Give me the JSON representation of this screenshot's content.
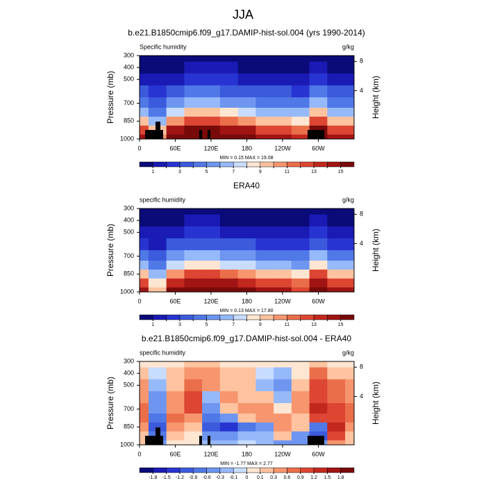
{
  "title": "JJA",
  "chart_data": [
    {
      "type": "contour",
      "title": "b.e21.B1850cmip6.f09_g17.DAMIP-hist-sol.004 (yrs 1990-2014)",
      "left_label": "Specific humidity",
      "right_label": "g/kg",
      "ylabel": "Pressure (mb)",
      "y2label": "Height (km)",
      "stats": "MIN =   0.15  MAX =  19.08",
      "ylim": [
        1000,
        300
      ],
      "yticks": [
        300,
        400,
        500,
        700,
        850,
        1000
      ],
      "y2ticks": [
        8,
        4
      ],
      "xlim": [
        0,
        360
      ],
      "xticks": [
        0,
        {
          "value": 60,
          "label": "60E"
        },
        {
          "value": 120,
          "label": "120E"
        },
        180,
        {
          "value": 240,
          "label": "120W"
        },
        {
          "value": 300,
          "label": "60W"
        }
      ],
      "x": [
        0,
        30,
        60,
        90,
        120,
        150,
        180,
        210,
        240,
        270,
        300,
        330,
        360
      ],
      "pressure": [
        300,
        400,
        500,
        600,
        700,
        775,
        850,
        925,
        1000
      ],
      "levels": [
        1,
        {
          "value": 2
        },
        3,
        {
          "value": 4
        },
        5,
        {
          "value": 6
        },
        7,
        {
          "value": 8
        },
        9,
        {
          "value": 10
        },
        11,
        {
          "value": 12
        },
        13,
        {
          "value": 14
        },
        15
      ],
      "colors": [
        "#0a0a78",
        "#1a1ab4",
        "#2834d2",
        "#3c5adc",
        "#5078e6",
        "#6e96f0",
        "#96b9fa",
        "#c8dcff",
        "#ffe6d2",
        "#ffc3a0",
        "#f7966e",
        "#eb6e4b",
        "#dc4632",
        "#c3281e",
        "#a01414",
        "#780a0a"
      ],
      "z": [
        [
          0.3,
          0.2,
          0.3,
          0.4,
          0.4,
          0.4,
          0.3,
          0.3,
          0.3,
          0.3,
          0.4,
          0.3,
          0.3
        ],
        [
          0.9,
          0.6,
          1.0,
          1.2,
          1.2,
          1.1,
          1.0,
          0.9,
          0.9,
          0.8,
          1.2,
          0.9,
          0.9
        ],
        [
          1.8,
          1.3,
          2.0,
          2.3,
          2.3,
          2.2,
          2.0,
          1.8,
          1.8,
          1.6,
          2.3,
          1.8,
          1.8
        ],
        [
          3.2,
          2.2,
          3.5,
          4.2,
          4.2,
          3.8,
          3.5,
          3.2,
          3.2,
          2.9,
          4.2,
          3.2,
          3.2
        ],
        [
          5,
          3.5,
          5.5,
          6.5,
          6.5,
          6,
          5.5,
          5,
          5,
          4.5,
          6.5,
          5,
          5
        ],
        [
          7,
          4.9,
          7.7,
          9.1,
          9.1,
          8.4,
          7.7,
          7,
          7,
          6.3,
          9.1,
          7,
          7
        ],
        [
          10,
          7,
          11,
          13,
          13,
          12,
          11,
          10,
          10,
          9,
          13,
          10,
          10
        ],
        [
          13,
          9.1,
          14.3,
          15.5,
          15.5,
          15,
          14.3,
          13,
          13,
          11.7,
          15.5,
          13,
          13
        ],
        [
          15,
          10.5,
          16.5,
          17.5,
          17.5,
          17,
          16.5,
          15,
          15,
          13.5,
          17.5,
          15,
          15
        ]
      ]
    },
    {
      "type": "contour",
      "title": "ERA40",
      "left_label": "specific humidity",
      "right_label": "g/kg",
      "ylabel": "Pressure (mb)",
      "y2label": "Height (km)",
      "stats": "MIN =   0.13  MAX =  17.80",
      "ylim": [
        1000,
        300
      ],
      "yticks": [
        300,
        400,
        500,
        700,
        850,
        1000
      ],
      "y2ticks": [
        8,
        4
      ],
      "xlim": [
        0,
        360
      ],
      "xticks": [
        0,
        {
          "value": 60,
          "label": "60E"
        },
        {
          "value": 120,
          "label": "120E"
        },
        180,
        {
          "value": 240,
          "label": "120W"
        },
        {
          "value": 300,
          "label": "60W"
        }
      ],
      "x": [
        0,
        30,
        60,
        90,
        120,
        150,
        180,
        210,
        240,
        270,
        300,
        330,
        360
      ],
      "pressure": [
        300,
        400,
        500,
        600,
        700,
        775,
        850,
        925,
        1000
      ],
      "levels": [
        1,
        {
          "value": 2
        },
        3,
        {
          "value": 4
        },
        5,
        {
          "value": 6
        },
        7,
        {
          "value": 8
        },
        9,
        {
          "value": 10
        },
        11,
        {
          "value": 12
        },
        13,
        {
          "value": 14
        },
        15
      ],
      "colors": [
        "#0a0a78",
        "#1a1ab4",
        "#2834d2",
        "#3c5adc",
        "#5078e6",
        "#6e96f0",
        "#96b9fa",
        "#c8dcff",
        "#ffe6d2",
        "#ffc3a0",
        "#f7966e",
        "#eb6e4b",
        "#dc4632",
        "#c3281e",
        "#a01414",
        "#780a0a"
      ],
      "z": [
        [
          0.2,
          0.2,
          0.3,
          0.3,
          0.4,
          0.3,
          0.3,
          0.3,
          0.3,
          0.2,
          0.3,
          0.3,
          0.2
        ],
        [
          0.8,
          0.5,
          0.9,
          1.1,
          1.1,
          1.0,
          0.9,
          0.8,
          0.8,
          0.7,
          1.1,
          0.8,
          0.8
        ],
        [
          1.7,
          1.1,
          1.9,
          2.2,
          2.2,
          2.0,
          1.9,
          1.7,
          1.7,
          1.5,
          2.2,
          1.7,
          1.7
        ],
        [
          3.0,
          2.0,
          3.3,
          4.0,
          4.0,
          3.6,
          3.3,
          3.0,
          3.0,
          2.7,
          4.0,
          3.0,
          3.0
        ],
        [
          4.7,
          3.2,
          5.2,
          6.2,
          6.2,
          5.7,
          5.2,
          4.7,
          4.7,
          4.2,
          6.2,
          4.7,
          4.7
        ],
        [
          6.6,
          4.5,
          7.3,
          8.7,
          8.7,
          8.0,
          7.3,
          6.6,
          6.6,
          6.0,
          8.7,
          6.6,
          6.6
        ],
        [
          9.5,
          6.5,
          10.5,
          12.4,
          12.4,
          11.4,
          10.5,
          9.5,
          9.5,
          8.5,
          12.4,
          9.5,
          9.5
        ],
        [
          12.5,
          8.6,
          13.7,
          15,
          15,
          14.3,
          13.7,
          12.5,
          12.5,
          11.2,
          15,
          12.5,
          12.5
        ],
        [
          14.5,
          10,
          15.8,
          16.8,
          16.8,
          16.3,
          15.8,
          14.5,
          14.5,
          13,
          16.8,
          14.5,
          14.5
        ]
      ]
    },
    {
      "type": "contour",
      "title": "b.e21.B1850cmip6.f09_g17.DAMIP-hist-sol.004 - ERA40",
      "left_label": "specific humidity",
      "right_label": "g/kg",
      "ylabel": "Pressure (mb)",
      "y2label": "Height (km)",
      "stats": "MIN =  -1.77  MAX =   2.77",
      "ylim": [
        1000,
        300
      ],
      "yticks": [
        300,
        400,
        500,
        700,
        850,
        1000
      ],
      "y2ticks": [
        8,
        4
      ],
      "xlim": [
        0,
        360
      ],
      "xticks": [
        0,
        {
          "value": 60,
          "label": "60E"
        },
        {
          "value": 120,
          "label": "120E"
        },
        180,
        {
          "value": 240,
          "label": "120W"
        },
        {
          "value": 300,
          "label": "60W"
        }
      ],
      "x": [
        0,
        30,
        60,
        90,
        120,
        150,
        180,
        210,
        240,
        270,
        300,
        330,
        360
      ],
      "pressure": [
        300,
        400,
        500,
        600,
        700,
        775,
        850,
        925,
        1000
      ],
      "levels": [
        -1.8,
        -1.5,
        -1.2,
        -0.9,
        -0.6,
        -0.3,
        -0.1,
        0,
        0.1,
        0.3,
        0.6,
        0.9,
        1.2,
        1.5,
        1.8
      ],
      "colors": [
        "#0a0a78",
        "#1a1ab4",
        "#2834d2",
        "#3c5adc",
        "#5078e6",
        "#6e96f0",
        "#96b9fa",
        "#c8dcff",
        "#ffe6d2",
        "#ffc3a0",
        "#f7966e",
        "#eb6e4b",
        "#dc4632",
        "#c3281e",
        "#a01414",
        "#780a0a"
      ],
      "z": [
        [
          0.05,
          0.1,
          0.05,
          0.2,
          0.15,
          0.05,
          0.05,
          0.05,
          0.05,
          0.05,
          0.2,
          0.1,
          0.05
        ],
        [
          0.2,
          -0.05,
          0.2,
          0.5,
          0.4,
          0.2,
          0.2,
          -0.05,
          -0.2,
          0.1,
          0.7,
          0.3,
          0.2
        ],
        [
          0.4,
          -0.2,
          0.3,
          0.8,
          0.5,
          0.3,
          0.2,
          -0.1,
          -0.3,
          0.2,
          1.0,
          0.7,
          0.4
        ],
        [
          0.6,
          -0.3,
          0.5,
          1.2,
          -0.2,
          0.4,
          0.3,
          0.2,
          -0.2,
          0.4,
          1.2,
          0.9,
          0.6
        ],
        [
          0.9,
          -0.5,
          0.6,
          1.0,
          -0.5,
          0.3,
          0.5,
          0.4,
          0.1,
          0.5,
          1.3,
          1.0,
          0.9
        ],
        [
          0.8,
          -0.8,
          0.7,
          0.6,
          -0.7,
          -0.4,
          0.2,
          0.6,
          0.5,
          0.3,
          1.0,
          1.2,
          0.8
        ],
        [
          0.5,
          -1.0,
          0.4,
          0.3,
          -0.9,
          -1.2,
          -0.6,
          -0.3,
          0.6,
          0.2,
          -0.7,
          1.5,
          0.5
        ],
        [
          0.3,
          -0.6,
          0.2,
          0.1,
          -0.4,
          -0.5,
          -0.2,
          -0.1,
          0.2,
          -0.3,
          -0.9,
          1.2,
          0.3
        ],
        [
          0.2,
          -0.3,
          0.1,
          0.05,
          -0.1,
          -0.1,
          -0.05,
          -0.1,
          -0.3,
          -0.5,
          -0.4,
          0.6,
          0.2
        ]
      ]
    }
  ]
}
